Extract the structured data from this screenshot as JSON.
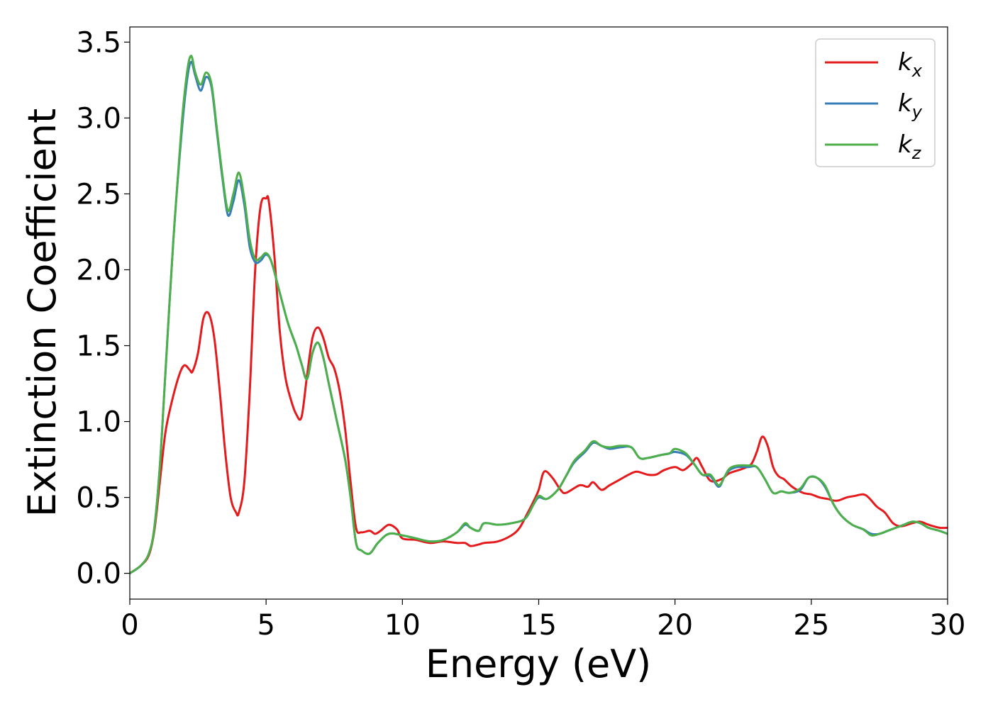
{
  "chart_data": {
    "type": "line",
    "xlabel": "Energy (eV)",
    "ylabel": "Extinction Coefficient",
    "xlim": [
      0,
      30
    ],
    "ylim": [
      -0.17,
      3.6
    ],
    "xticks": [
      0,
      5,
      10,
      15,
      20,
      25,
      30
    ],
    "xtick_labels": [
      "0",
      "5",
      "10",
      "15",
      "20",
      "25",
      "30"
    ],
    "yticks": [
      0.0,
      0.5,
      1.0,
      1.5,
      2.0,
      2.5,
      3.0,
      3.5
    ],
    "ytick_labels": [
      "0.0",
      "0.5",
      "1.0",
      "1.5",
      "2.0",
      "2.5",
      "3.0",
      "3.5"
    ],
    "grid": false,
    "legend_position": "top-right",
    "series": [
      {
        "name": "kx",
        "legend_base": "k",
        "legend_sub": "x",
        "color": "#e41a1c",
        "x": [
          0,
          0.4,
          0.7,
          0.9,
          1.1,
          1.3,
          1.5,
          1.8,
          2.0,
          2.2,
          2.3,
          2.5,
          2.7,
          2.9,
          3.1,
          3.3,
          3.5,
          3.7,
          3.9,
          4.0,
          4.2,
          4.4,
          4.6,
          4.8,
          5.0,
          5.1,
          5.3,
          5.5,
          5.7,
          5.9,
          6.1,
          6.3,
          6.5,
          6.7,
          6.9,
          7.1,
          7.3,
          7.5,
          7.7,
          7.9,
          8.1,
          8.3,
          8.5,
          8.8,
          9.0,
          9.2,
          9.5,
          9.8,
          10.0,
          10.5,
          11.0,
          11.5,
          12.0,
          12.3,
          12.5,
          12.8,
          13.0,
          13.5,
          14.0,
          14.3,
          14.6,
          14.8,
          15.0,
          15.2,
          15.5,
          15.8,
          16.0,
          16.5,
          16.8,
          17.0,
          17.3,
          17.6,
          18.0,
          18.3,
          18.6,
          19.0,
          19.3,
          19.6,
          20.0,
          20.3,
          20.6,
          20.8,
          21.0,
          21.3,
          21.7,
          22.0,
          22.5,
          22.8,
          23.0,
          23.2,
          23.4,
          23.6,
          23.8,
          24.0,
          24.3,
          24.7,
          25.0,
          25.3,
          25.6,
          25.8,
          26.0,
          26.3,
          26.6,
          26.9,
          27.1,
          27.4,
          27.7,
          28.0,
          28.3,
          28.7,
          29.0,
          29.3,
          29.7,
          30.0
        ],
        "values": [
          0.0,
          0.05,
          0.12,
          0.28,
          0.6,
          0.92,
          1.1,
          1.3,
          1.37,
          1.34,
          1.33,
          1.45,
          1.68,
          1.71,
          1.55,
          1.2,
          0.8,
          0.5,
          0.4,
          0.4,
          0.6,
          1.2,
          2.0,
          2.42,
          2.47,
          2.45,
          2.1,
          1.6,
          1.3,
          1.15,
          1.05,
          1.03,
          1.3,
          1.55,
          1.62,
          1.55,
          1.42,
          1.35,
          1.2,
          0.95,
          0.6,
          0.3,
          0.27,
          0.28,
          0.26,
          0.28,
          0.32,
          0.29,
          0.23,
          0.22,
          0.2,
          0.21,
          0.2,
          0.2,
          0.18,
          0.19,
          0.2,
          0.21,
          0.25,
          0.3,
          0.4,
          0.47,
          0.55,
          0.67,
          0.63,
          0.55,
          0.53,
          0.58,
          0.57,
          0.6,
          0.55,
          0.58,
          0.62,
          0.65,
          0.67,
          0.65,
          0.65,
          0.68,
          0.7,
          0.68,
          0.72,
          0.76,
          0.7,
          0.61,
          0.62,
          0.66,
          0.69,
          0.72,
          0.8,
          0.9,
          0.84,
          0.7,
          0.64,
          0.62,
          0.57,
          0.53,
          0.52,
          0.5,
          0.49,
          0.48,
          0.48,
          0.5,
          0.51,
          0.52,
          0.5,
          0.44,
          0.4,
          0.33,
          0.31,
          0.33,
          0.34,
          0.32,
          0.3,
          0.3
        ]
      },
      {
        "name": "ky",
        "legend_base": "k",
        "legend_sub": "y",
        "color": "#377eb8",
        "x": [
          0,
          0.4,
          0.7,
          0.9,
          1.1,
          1.3,
          1.6,
          1.9,
          2.1,
          2.25,
          2.4,
          2.6,
          2.8,
          3.0,
          3.2,
          3.4,
          3.6,
          3.8,
          4.0,
          4.2,
          4.4,
          4.6,
          4.8,
          5.0,
          5.2,
          5.5,
          5.8,
          6.1,
          6.3,
          6.5,
          6.7,
          6.9,
          7.1,
          7.3,
          7.6,
          7.9,
          8.1,
          8.3,
          8.5,
          8.8,
          9.1,
          9.5,
          10.0,
          10.5,
          11.0,
          11.5,
          12.0,
          12.3,
          12.5,
          12.8,
          13.0,
          13.5,
          14.0,
          14.5,
          14.8,
          15.0,
          15.3,
          15.7,
          16.0,
          16.3,
          16.7,
          17.0,
          17.3,
          17.6,
          18.0,
          18.4,
          18.7,
          19.0,
          19.5,
          19.8,
          20.0,
          20.4,
          20.7,
          21.0,
          21.3,
          21.6,
          21.8,
          22.0,
          22.3,
          22.7,
          23.0,
          23.3,
          23.6,
          23.9,
          24.2,
          24.6,
          24.9,
          25.2,
          25.5,
          25.8,
          26.1,
          26.5,
          26.9,
          27.2,
          27.5,
          27.8,
          28.1,
          28.4,
          28.7,
          29.0,
          29.3,
          29.7,
          30.0
        ],
        "values": [
          0.0,
          0.05,
          0.13,
          0.3,
          0.7,
          1.3,
          2.2,
          2.9,
          3.25,
          3.37,
          3.28,
          3.18,
          3.27,
          3.2,
          2.9,
          2.6,
          2.36,
          2.45,
          2.59,
          2.43,
          2.15,
          2.05,
          2.06,
          2.1,
          2.05,
          1.85,
          1.65,
          1.5,
          1.38,
          1.28,
          1.45,
          1.52,
          1.42,
          1.25,
          1.0,
          0.75,
          0.5,
          0.2,
          0.15,
          0.13,
          0.2,
          0.26,
          0.25,
          0.23,
          0.21,
          0.22,
          0.27,
          0.32,
          0.3,
          0.28,
          0.33,
          0.32,
          0.33,
          0.36,
          0.45,
          0.5,
          0.49,
          0.55,
          0.64,
          0.73,
          0.8,
          0.86,
          0.84,
          0.82,
          0.83,
          0.83,
          0.76,
          0.76,
          0.78,
          0.79,
          0.8,
          0.78,
          0.72,
          0.65,
          0.64,
          0.57,
          0.63,
          0.68,
          0.7,
          0.7,
          0.7,
          0.62,
          0.53,
          0.54,
          0.53,
          0.55,
          0.63,
          0.63,
          0.57,
          0.46,
          0.38,
          0.32,
          0.29,
          0.26,
          0.26,
          0.28,
          0.3,
          0.32,
          0.34,
          0.33,
          0.3,
          0.28,
          0.26
        ]
      },
      {
        "name": "kz",
        "legend_base": "k",
        "legend_sub": "z",
        "color": "#4daf4a",
        "x": [
          0,
          0.4,
          0.7,
          0.9,
          1.1,
          1.3,
          1.6,
          1.9,
          2.1,
          2.25,
          2.4,
          2.6,
          2.8,
          3.0,
          3.2,
          3.4,
          3.6,
          3.8,
          4.0,
          4.2,
          4.4,
          4.6,
          4.8,
          5.0,
          5.2,
          5.5,
          5.8,
          6.1,
          6.3,
          6.5,
          6.7,
          6.9,
          7.1,
          7.3,
          7.6,
          7.9,
          8.1,
          8.3,
          8.5,
          8.8,
          9.1,
          9.5,
          10.0,
          10.5,
          11.0,
          11.5,
          12.0,
          12.3,
          12.5,
          12.8,
          13.0,
          13.5,
          14.0,
          14.5,
          14.8,
          15.0,
          15.3,
          15.7,
          16.0,
          16.3,
          16.7,
          17.0,
          17.3,
          17.6,
          18.0,
          18.4,
          18.7,
          19.0,
          19.5,
          19.8,
          20.0,
          20.4,
          20.7,
          21.0,
          21.3,
          21.6,
          21.8,
          22.0,
          22.3,
          22.7,
          23.0,
          23.3,
          23.6,
          23.9,
          24.2,
          24.6,
          24.9,
          25.2,
          25.5,
          25.8,
          26.1,
          26.5,
          26.9,
          27.2,
          27.5,
          27.8,
          28.1,
          28.4,
          28.7,
          29.0,
          29.3,
          29.7,
          30.0
        ],
        "values": [
          0.0,
          0.05,
          0.13,
          0.3,
          0.7,
          1.3,
          2.2,
          2.95,
          3.3,
          3.41,
          3.3,
          3.22,
          3.3,
          3.22,
          2.92,
          2.62,
          2.39,
          2.5,
          2.64,
          2.47,
          2.2,
          2.07,
          2.08,
          2.11,
          2.05,
          1.85,
          1.65,
          1.5,
          1.38,
          1.28,
          1.45,
          1.52,
          1.42,
          1.25,
          1.0,
          0.75,
          0.5,
          0.2,
          0.15,
          0.13,
          0.2,
          0.26,
          0.25,
          0.23,
          0.21,
          0.22,
          0.27,
          0.33,
          0.3,
          0.28,
          0.33,
          0.32,
          0.33,
          0.36,
          0.45,
          0.51,
          0.49,
          0.55,
          0.64,
          0.74,
          0.81,
          0.87,
          0.84,
          0.83,
          0.84,
          0.83,
          0.76,
          0.76,
          0.78,
          0.79,
          0.82,
          0.79,
          0.72,
          0.65,
          0.65,
          0.58,
          0.63,
          0.69,
          0.71,
          0.71,
          0.7,
          0.62,
          0.53,
          0.54,
          0.53,
          0.56,
          0.63,
          0.63,
          0.58,
          0.46,
          0.38,
          0.32,
          0.29,
          0.25,
          0.26,
          0.28,
          0.3,
          0.32,
          0.34,
          0.33,
          0.3,
          0.28,
          0.26
        ]
      }
    ]
  }
}
